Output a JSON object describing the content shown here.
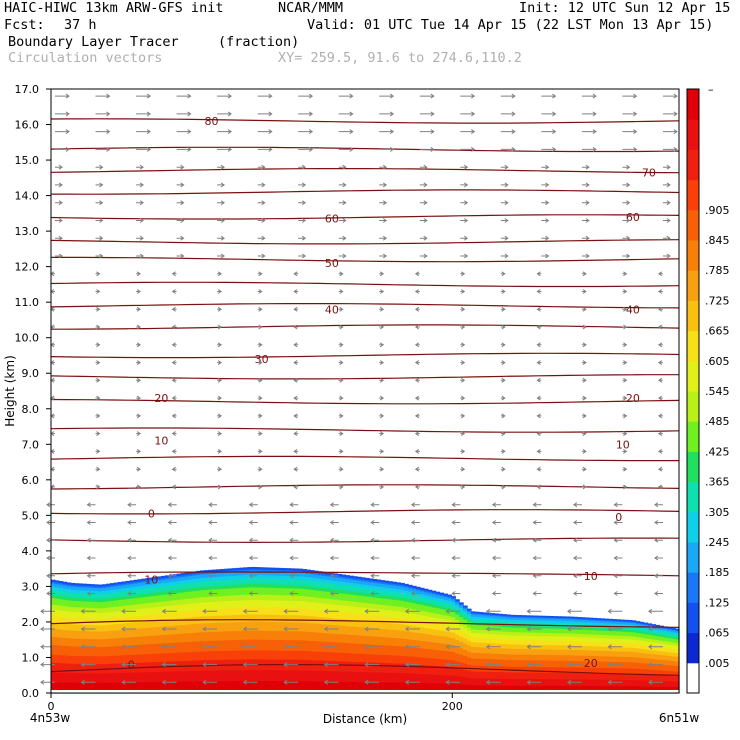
{
  "header": {
    "model": "HAIC-HIWC 13km ARW-GFS init",
    "org": "NCAR/MMM",
    "init": "Init: 12 UTC Sun 12 Apr 15",
    "fcst_label": "Fcst:",
    "fcst_value": "37 h",
    "valid": "Valid: 01 UTC Tue 14 Apr 15 (22 LST Mon 13 Apr 15)",
    "field": "Boundary Layer Tracer",
    "units": "(fraction)",
    "overlay": "Circulation vectors",
    "xy": "XY= 259.5, 91.6 to 274.6,110.2"
  },
  "chart_data": {
    "type": "heatmap",
    "title": "Boundary Layer Tracer",
    "xlabel": "Distance (km)",
    "ylabel": "Height (km)",
    "xlim": [
      0,
      313
    ],
    "ylim": [
      0,
      17
    ],
    "x_ticks": [
      0,
      200
    ],
    "x_tick_labels": [
      "0",
      "200"
    ],
    "x_end_labels": [
      "4n53w",
      "6n51w"
    ],
    "y_ticks": [
      0,
      1,
      2,
      3,
      4,
      5,
      6,
      7,
      8,
      9,
      10,
      11,
      12,
      13,
      14,
      15,
      16,
      17
    ],
    "y_tick_labels": [
      "0.0",
      "1.0",
      "2.0",
      "3.0",
      "4.0",
      "5.0",
      "6.0",
      "7.0",
      "8.0",
      "9.0",
      "10.0",
      "11.0",
      "12.0",
      "13.0",
      "14.0",
      "15.0",
      "16.0",
      "17.0"
    ],
    "colorbar": {
      "labels": [
        ".005",
        ".065",
        ".125",
        ".185",
        ".245",
        ".305",
        ".365",
        ".425",
        ".485",
        ".545",
        ".605",
        ".665",
        ".725",
        ".785",
        ".845",
        ".905"
      ],
      "top_label": "–",
      "colors": [
        "#ffffff",
        "#0a2ad0",
        "#1250f0",
        "#1a78f8",
        "#1aa8f8",
        "#10cfe8",
        "#10e0b0",
        "#20e060",
        "#70f020",
        "#b8f018",
        "#e0f018",
        "#f8e018",
        "#f8c010",
        "#f8a010",
        "#f88008",
        "#f86008",
        "#f84008",
        "#f02010",
        "#e81010",
        "#e00008"
      ]
    },
    "tracer_top": {
      "x": [
        0,
        10,
        25,
        50,
        75,
        100,
        125,
        150,
        175,
        200,
        210,
        230,
        260,
        290,
        313
      ],
      "height": [
        3.2,
        3.1,
        3.05,
        3.25,
        3.45,
        3.55,
        3.5,
        3.3,
        3.1,
        2.75,
        2.3,
        2.2,
        2.15,
        2.05,
        1.8
      ]
    },
    "isentrope_heights": [
      0.6,
      1.9,
      3.3,
      4.3,
      5.1,
      5.8,
      6.6,
      7.4,
      8.2,
      8.9,
      9.5,
      10.3,
      10.9,
      11.5,
      12.2,
      12.7,
      13.4,
      14.1,
      14.7,
      15.3,
      16.1
    ],
    "contours": [
      {
        "label": "80",
        "x": 80,
        "y": 16.1
      },
      {
        "label": "70",
        "x": 298,
        "y": 14.65
      },
      {
        "label": "60",
        "x": 140,
        "y": 13.35
      },
      {
        "label": "60",
        "x": 290,
        "y": 13.4
      },
      {
        "label": "50",
        "x": 140,
        "y": 12.1
      },
      {
        "label": "40",
        "x": 140,
        "y": 10.8
      },
      {
        "label": "40",
        "x": 290,
        "y": 10.8
      },
      {
        "label": "30",
        "x": 105,
        "y": 9.4
      },
      {
        "label": "20",
        "x": 55,
        "y": 8.3
      },
      {
        "label": "20",
        "x": 290,
        "y": 8.3
      },
      {
        "label": "10",
        "x": 55,
        "y": 7.1
      },
      {
        "label": "10",
        "x": 285,
        "y": 7.0
      },
      {
        "label": "0",
        "x": 50,
        "y": 5.05
      },
      {
        "label": "0",
        "x": 283,
        "y": 4.95
      },
      {
        "label": "10",
        "x": 50,
        "y": 3.2
      },
      {
        "label": "10",
        "x": 269,
        "y": 3.3
      },
      {
        "label": "20",
        "x": 269,
        "y": 0.85
      },
      {
        "label": "0",
        "x": 40,
        "y": 0.8
      }
    ]
  }
}
